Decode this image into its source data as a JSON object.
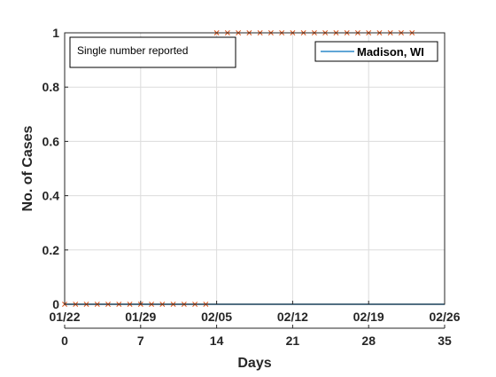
{
  "chart_data": {
    "type": "line",
    "xlabel": "Days",
    "ylabel": "No. of Cases",
    "xlim": [
      0,
      35
    ],
    "ylim": [
      0,
      1
    ],
    "x_ticks": [
      0,
      7,
      14,
      21,
      28,
      35
    ],
    "x_tick_labels": [
      "0",
      "7",
      "14",
      "21",
      "28",
      "35"
    ],
    "date_ticks": [
      0,
      7,
      14,
      21,
      28,
      35
    ],
    "date_tick_labels": [
      "01/22",
      "01/29",
      "02/05",
      "02/12",
      "02/19",
      "02/26"
    ],
    "y_ticks": [
      0,
      0.2,
      0.4,
      0.6,
      0.8,
      1
    ],
    "y_tick_labels": [
      "0",
      "0.2",
      "0.4",
      "0.6",
      "0.8",
      "1"
    ],
    "grid": true,
    "annotation": "Single number reported",
    "legend": {
      "position": "top-right",
      "entries": [
        "Madison, WI"
      ]
    },
    "series": [
      {
        "name": "Madison, WI",
        "style": "line",
        "color": "#0072BD",
        "x": [
          0,
          35
        ],
        "y": [
          0,
          0
        ]
      },
      {
        "style": "x-markers",
        "color": "#D95319",
        "x": [
          0,
          1,
          2,
          3,
          4,
          5,
          6,
          7,
          8,
          9,
          10,
          11,
          12,
          13,
          14,
          15,
          16,
          17,
          18,
          19,
          20,
          21,
          22,
          23,
          24,
          25,
          26,
          27,
          28,
          29,
          30,
          31,
          32
        ],
        "y": [
          0,
          0,
          0,
          0,
          0,
          0,
          0,
          0,
          0,
          0,
          0,
          0,
          0,
          0,
          1,
          1,
          1,
          1,
          1,
          1,
          1,
          1,
          1,
          1,
          1,
          1,
          1,
          1,
          1,
          1,
          1,
          1,
          1
        ]
      }
    ]
  }
}
